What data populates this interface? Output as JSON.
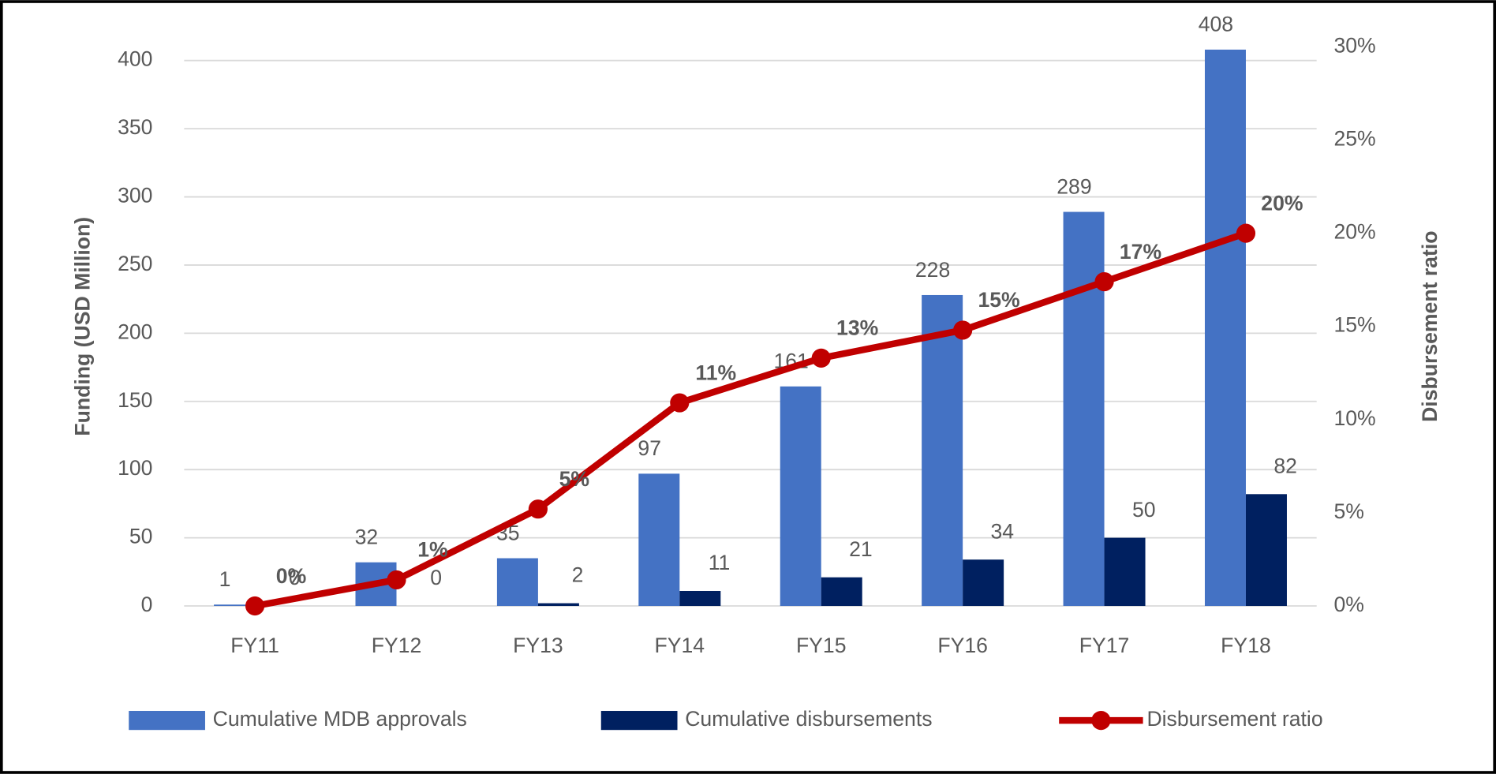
{
  "chart_data": {
    "type": "bar",
    "categories": [
      "FY11",
      "FY12",
      "FY13",
      "FY14",
      "FY15",
      "FY16",
      "FY17",
      "FY18"
    ],
    "series": [
      {
        "name": "Cumulative MDB approvals",
        "color": "#4472c4",
        "values": [
          1,
          32,
          35,
          97,
          161,
          228,
          289,
          408
        ]
      },
      {
        "name": "Cumulative disbursements",
        "color": "#002060",
        "values": [
          0,
          0,
          2,
          11,
          21,
          34,
          50,
          82
        ]
      },
      {
        "name": "Disbursement ratio",
        "type": "line",
        "axis": "y2",
        "color": "#c00000",
        "values": [
          0,
          1.4,
          5.2,
          10.9,
          13.3,
          14.8,
          17.4,
          20
        ],
        "value_labels": [
          "0%",
          "1%",
          "5%",
          "11%",
          "13%",
          "15%",
          "17%",
          "20%"
        ]
      }
    ],
    "ylabel": "Funding (USD Million)",
    "y2label": "Disbursement ratio",
    "ylim": [
      0,
      410
    ],
    "yticks": [
      0,
      50,
      100,
      150,
      200,
      250,
      300,
      350,
      400
    ],
    "y2lim": [
      0,
      30
    ],
    "y2ticks": [
      {
        "value": 0,
        "label": "0%"
      },
      {
        "value": 5,
        "label": "5%"
      },
      {
        "value": 10,
        "label": "10%"
      },
      {
        "value": 15,
        "label": "15%"
      },
      {
        "value": 20,
        "label": "20%"
      },
      {
        "value": 25,
        "label": "25%"
      },
      {
        "value": 30,
        "label": "30%"
      }
    ],
    "grid": true,
    "legend": "bottom"
  }
}
